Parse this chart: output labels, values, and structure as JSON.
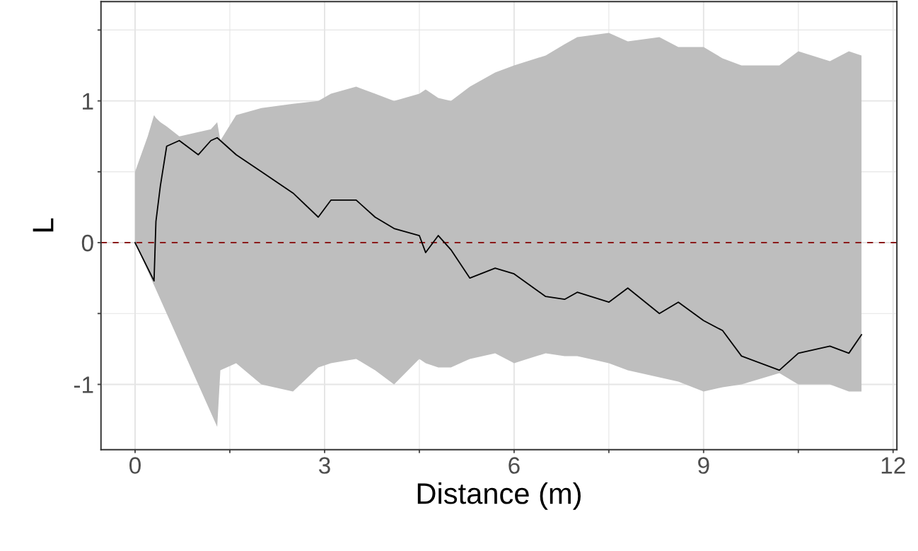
{
  "chart_data": {
    "type": "line",
    "xlabel": "Distance (m)",
    "ylabel": "L",
    "x": [
      0,
      0.2,
      0.3,
      0.33,
      0.4,
      0.5,
      0.7,
      1.0,
      1.2,
      1.3,
      1.35,
      1.6,
      2.0,
      2.5,
      2.9,
      3.1,
      3.5,
      3.8,
      4.1,
      4.5,
      4.6,
      4.8,
      5.0,
      5.3,
      5.7,
      6.0,
      6.5,
      6.8,
      7.0,
      7.5,
      7.8,
      8.3,
      8.6,
      9.0,
      9.3,
      9.6,
      10.2,
      10.5,
      11.0,
      11.3,
      11.5
    ],
    "series": [
      {
        "color": "#000000",
        "values": [
          0,
          -0.18,
          -0.27,
          0.15,
          0.4,
          0.68,
          0.72,
          0.62,
          0.72,
          0.74,
          0.72,
          0.62,
          0.5,
          0.35,
          0.18,
          0.3,
          0.3,
          0.18,
          0.1,
          0.05,
          -0.07,
          0.05,
          -0.05,
          -0.25,
          -0.18,
          -0.22,
          -0.38,
          -0.4,
          -0.35,
          -0.42,
          -0.32,
          -0.5,
          -0.42,
          -0.55,
          -0.62,
          -0.8,
          -0.9,
          -0.78,
          -0.73,
          -0.78,
          -0.65
        ],
        "upper": [
          0.5,
          0.75,
          0.9,
          0.88,
          0.85,
          0.82,
          0.75,
          0.78,
          0.8,
          0.85,
          0.72,
          0.9,
          0.95,
          0.98,
          1.0,
          1.05,
          1.1,
          1.05,
          1.0,
          1.05,
          1.08,
          1.02,
          1.0,
          1.1,
          1.2,
          1.25,
          1.32,
          1.4,
          1.45,
          1.48,
          1.42,
          1.45,
          1.38,
          1.38,
          1.3,
          1.25,
          1.25,
          1.35,
          1.28,
          1.35,
          1.32
        ],
        "lower": [
          0,
          -0.2,
          -0.3,
          -0.33,
          -0.4,
          -0.5,
          -0.7,
          -1.0,
          -1.2,
          -1.3,
          -0.9,
          -0.85,
          -1.0,
          -1.05,
          -0.88,
          -0.85,
          -0.82,
          -0.9,
          -1.0,
          -0.82,
          -0.85,
          -0.88,
          -0.88,
          -0.82,
          -0.78,
          -0.85,
          -0.78,
          -0.8,
          -0.8,
          -0.85,
          -0.9,
          -0.95,
          -0.98,
          -1.05,
          -1.02,
          -1.0,
          -0.92,
          -1.0,
          -1.0,
          -1.05,
          -1.05
        ]
      }
    ],
    "ref_lines": [
      {
        "axis": "y",
        "value": 0,
        "color": "#8b1a1a",
        "line_style": "dashed"
      }
    ],
    "xlim": [
      -0.54,
      12.06
    ],
    "ylim": [
      -1.46,
      1.7
    ],
    "xticks": [
      0,
      {
        "value": 1.5,
        "label": null
      },
      3,
      {
        "value": 4.5,
        "label": null
      },
      6,
      {
        "value": 7.5,
        "label": null
      },
      9,
      {
        "value": 10.5,
        "label": null
      },
      12
    ],
    "yticks": [
      -1,
      {
        "value": -0.5,
        "label": null
      },
      0,
      {
        "value": 0.5,
        "label": null
      },
      1,
      {
        "value": 1.5,
        "label": null
      }
    ],
    "grid": true,
    "line_style": "solid",
    "marker": "none"
  }
}
